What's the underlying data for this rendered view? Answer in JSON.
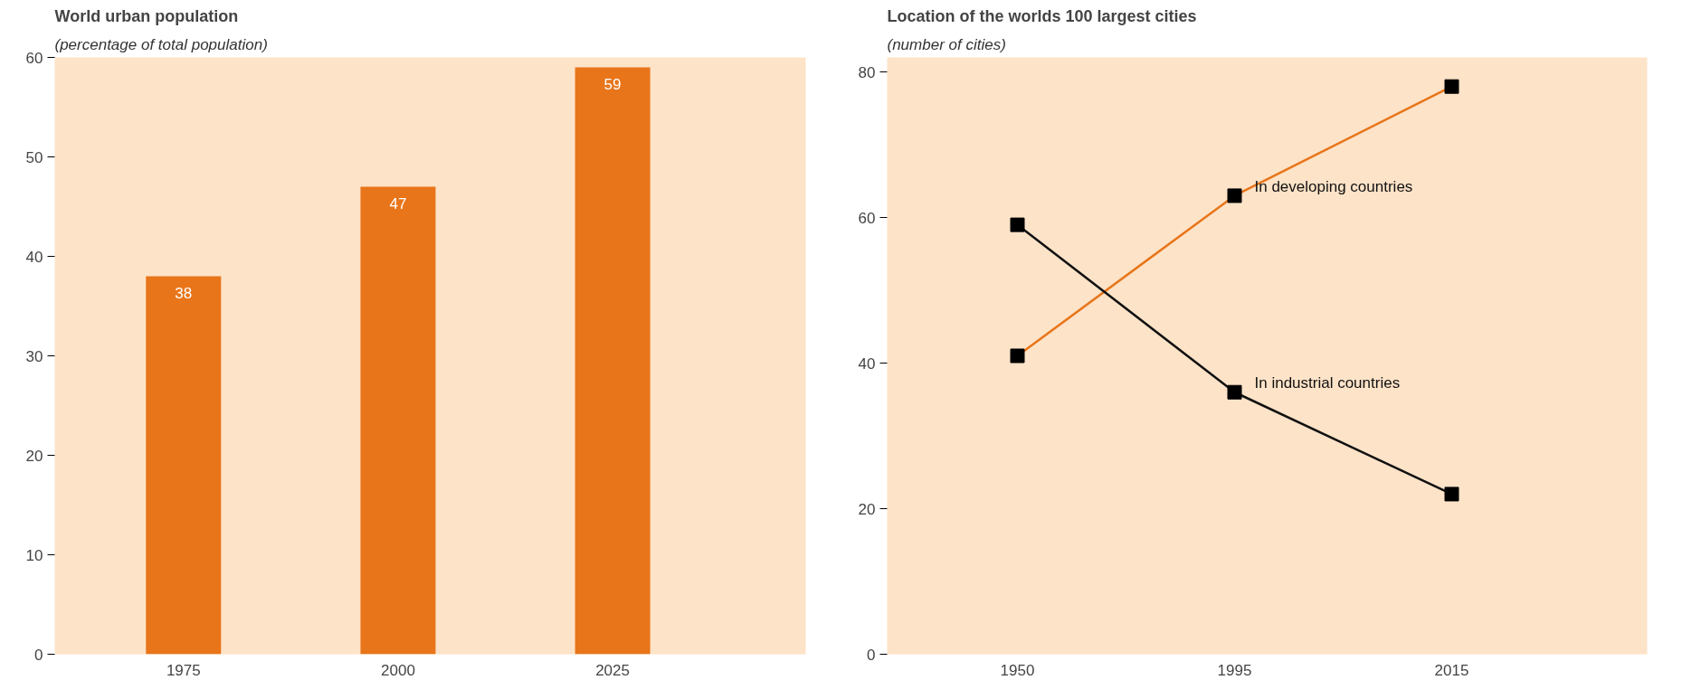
{
  "chart_data": [
    {
      "type": "bar",
      "title": "World urban population",
      "subtitle": "(percentage of total population)",
      "categories": [
        "1975",
        "2000",
        "2025"
      ],
      "values": [
        38,
        47,
        59
      ],
      "color": "#e8751a",
      "ylim": [
        0,
        60
      ],
      "yticks": [
        0,
        10,
        20,
        30,
        40,
        50,
        60
      ],
      "grid": false,
      "data_labels": true
    },
    {
      "type": "line",
      "title": "Location of the worlds 100 largest cities",
      "subtitle": "(number of cities)",
      "categories": [
        "1950",
        "1995",
        "2015"
      ],
      "series": [
        {
          "name": "In developing countries",
          "color": "#e8751a",
          "values": [
            41,
            63,
            78
          ]
        },
        {
          "name": "In industrial countries",
          "color": "#111111",
          "values": [
            59,
            36,
            22
          ]
        }
      ],
      "ylim": [
        0,
        82
      ],
      "yticks": [
        0,
        20,
        40,
        60,
        80
      ],
      "grid": false,
      "legend": false,
      "marker": "square",
      "line_style": "solid"
    }
  ]
}
